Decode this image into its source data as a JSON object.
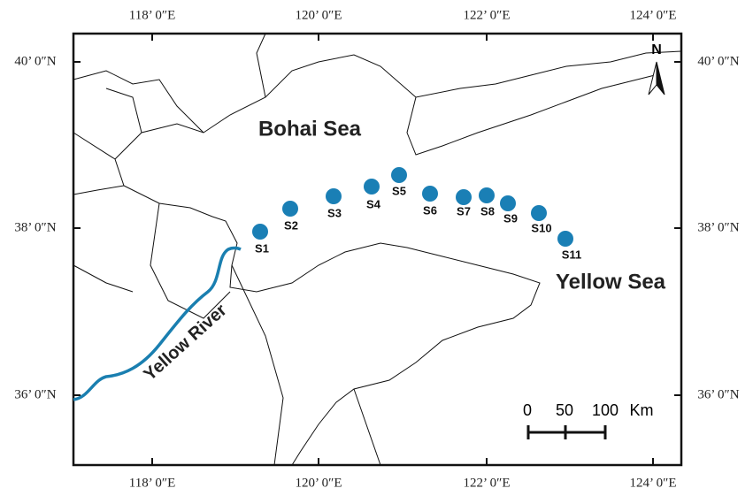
{
  "map": {
    "lon_labels": [
      "118’ 0″E",
      "120’ 0″E",
      "122’ 0″E",
      "124’ 0″E"
    ],
    "lat_labels": [
      "40’ 0″N",
      "38’ 0″N",
      "36’ 0″N"
    ],
    "north": "N",
    "seas": [
      "Bohai Sea",
      "Yellow Sea"
    ],
    "river": "Yellow River",
    "stations": [
      "S1",
      "S2",
      "S3",
      "S4",
      "S5",
      "S6",
      "S7",
      "S8",
      "S9",
      "S10",
      "S11"
    ],
    "scale": {
      "labels": [
        "0",
        "50",
        "100"
      ],
      "unit": "Km"
    }
  }
}
